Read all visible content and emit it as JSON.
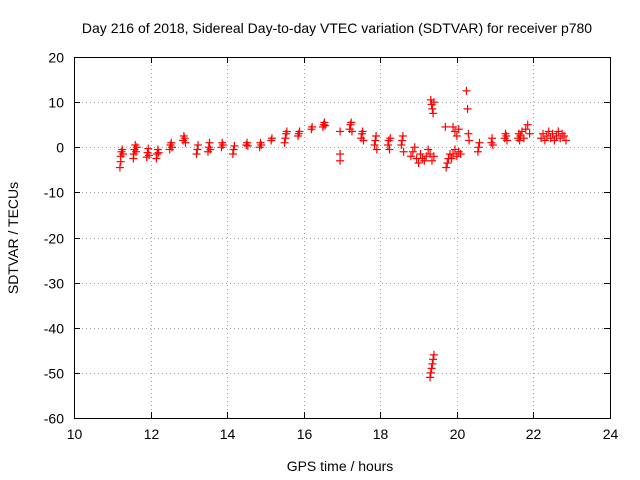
{
  "chart_data": {
    "type": "scatter",
    "title": "Day 216 of 2018, Sidereal Day-to-day VTEC variation (SDTVAR) for receiver p780",
    "xlabel": "GPS time / hours",
    "ylabel": "SDTVAR / TECUs",
    "xlim": [
      10,
      24
    ],
    "ylim": [
      -60,
      20
    ],
    "xticks": [
      10,
      12,
      14,
      16,
      18,
      20,
      22,
      24
    ],
    "yticks": [
      -60,
      -50,
      -40,
      -30,
      -20,
      -10,
      0,
      10,
      20
    ],
    "grid": true,
    "marker": "plus",
    "series_color": "#ff0000",
    "series": [
      {
        "name": "SDTVAR",
        "points": [
          [
            11.2,
            -4.5
          ],
          [
            11.22,
            -3.2
          ],
          [
            11.22,
            -2.0
          ],
          [
            11.24,
            -1.0
          ],
          [
            11.26,
            -0.5
          ],
          [
            11.28,
            -1.5
          ],
          [
            11.55,
            -2.5
          ],
          [
            11.56,
            -1.5
          ],
          [
            11.58,
            -0.5
          ],
          [
            11.6,
            0.5
          ],
          [
            11.62,
            -1.0
          ],
          [
            11.64,
            0.0
          ],
          [
            11.9,
            -2.2
          ],
          [
            11.92,
            -1.2
          ],
          [
            11.94,
            -0.3
          ],
          [
            11.96,
            -1.8
          ],
          [
            12.15,
            -2.5
          ],
          [
            12.17,
            -1.5
          ],
          [
            12.19,
            -0.5
          ],
          [
            12.21,
            -1.2
          ],
          [
            12.5,
            -0.5
          ],
          [
            12.52,
            0.5
          ],
          [
            12.54,
            1.0
          ],
          [
            12.56,
            0.0
          ],
          [
            12.85,
            1.5
          ],
          [
            12.87,
            2.5
          ],
          [
            12.89,
            2.0
          ],
          [
            12.91,
            1.0
          ],
          [
            13.2,
            -1.5
          ],
          [
            13.22,
            -0.5
          ],
          [
            13.24,
            0.5
          ],
          [
            13.5,
            -1.0
          ],
          [
            13.52,
            0.0
          ],
          [
            13.54,
            1.0
          ],
          [
            13.56,
            -0.5
          ],
          [
            13.85,
            0.0
          ],
          [
            13.87,
            1.0
          ],
          [
            13.89,
            0.5
          ],
          [
            14.15,
            -1.5
          ],
          [
            14.17,
            -0.5
          ],
          [
            14.19,
            0.3
          ],
          [
            14.5,
            0.5
          ],
          [
            14.52,
            1.0
          ],
          [
            14.54,
            0.3
          ],
          [
            14.85,
            0.0
          ],
          [
            14.87,
            1.0
          ],
          [
            14.89,
            0.5
          ],
          [
            15.15,
            1.5
          ],
          [
            15.17,
            2.0
          ],
          [
            15.5,
            1.0
          ],
          [
            15.52,
            2.0
          ],
          [
            15.54,
            3.0
          ],
          [
            15.56,
            3.5
          ],
          [
            15.85,
            2.5
          ],
          [
            15.87,
            3.0
          ],
          [
            15.89,
            3.5
          ],
          [
            16.2,
            4.0
          ],
          [
            16.22,
            4.5
          ],
          [
            16.5,
            4.5
          ],
          [
            16.52,
            5.0
          ],
          [
            16.54,
            5.5
          ],
          [
            16.56,
            4.8
          ],
          [
            16.95,
            -1.5
          ],
          [
            16.95,
            -3.0
          ],
          [
            16.95,
            3.5
          ],
          [
            17.2,
            4.0
          ],
          [
            17.22,
            5.0
          ],
          [
            17.24,
            5.5
          ],
          [
            17.26,
            3.5
          ],
          [
            17.5,
            2.0
          ],
          [
            17.52,
            3.0
          ],
          [
            17.54,
            3.5
          ],
          [
            17.56,
            1.5
          ],
          [
            17.85,
            0.5
          ],
          [
            17.87,
            1.5
          ],
          [
            17.89,
            2.5
          ],
          [
            17.91,
            -0.5
          ],
          [
            18.2,
            0.5
          ],
          [
            18.22,
            1.5
          ],
          [
            18.24,
            -0.5
          ],
          [
            18.26,
            2.0
          ],
          [
            18.55,
            0.5
          ],
          [
            18.57,
            1.5
          ],
          [
            18.59,
            2.5
          ],
          [
            18.61,
            -1.0
          ],
          [
            18.8,
            -2.0
          ],
          [
            18.85,
            -1.0
          ],
          [
            18.9,
            0.0
          ],
          [
            18.95,
            -2.5
          ],
          [
            19.0,
            -3.5
          ],
          [
            19.05,
            -1.5
          ],
          [
            19.1,
            -2.5
          ],
          [
            19.15,
            -3.0
          ],
          [
            19.2,
            -2.0
          ],
          [
            19.25,
            -0.5
          ],
          [
            19.3,
            -1.5
          ],
          [
            19.35,
            -3.0
          ],
          [
            19.4,
            -2.0
          ],
          [
            19.32,
            10.5
          ],
          [
            19.34,
            9.5
          ],
          [
            19.36,
            8.5
          ],
          [
            19.38,
            7.5
          ],
          [
            19.4,
            10.0
          ],
          [
            19.3,
            -51.0
          ],
          [
            19.32,
            -50.0
          ],
          [
            19.34,
            -49.0
          ],
          [
            19.36,
            -48.0
          ],
          [
            19.38,
            -47.0
          ],
          [
            19.4,
            -46.0
          ],
          [
            19.7,
            4.5
          ],
          [
            19.72,
            -4.5
          ],
          [
            19.75,
            -3.5
          ],
          [
            19.78,
            -2.5
          ],
          [
            19.82,
            -1.5
          ],
          [
            19.86,
            -2.5
          ],
          [
            19.9,
            -1.5
          ],
          [
            19.95,
            -0.5
          ],
          [
            20.0,
            -2.0
          ],
          [
            20.05,
            -1.0
          ],
          [
            20.1,
            -1.5
          ],
          [
            19.9,
            4.5
          ],
          [
            19.95,
            3.5
          ],
          [
            20.0,
            2.5
          ],
          [
            20.05,
            4.0
          ],
          [
            20.25,
            12.5
          ],
          [
            20.28,
            8.5
          ],
          [
            20.3,
            3.0
          ],
          [
            20.32,
            1.5
          ],
          [
            20.55,
            -1.0
          ],
          [
            20.57,
            0.0
          ],
          [
            20.59,
            1.0
          ],
          [
            20.9,
            1.0
          ],
          [
            20.92,
            2.0
          ],
          [
            20.94,
            0.5
          ],
          [
            21.25,
            2.0
          ],
          [
            21.27,
            3.0
          ],
          [
            21.29,
            2.5
          ],
          [
            21.31,
            1.5
          ],
          [
            21.6,
            2.0
          ],
          [
            21.62,
            3.0
          ],
          [
            21.64,
            1.5
          ],
          [
            21.66,
            2.5
          ],
          [
            21.7,
            3.5
          ],
          [
            21.75,
            2.0
          ],
          [
            21.8,
            4.0
          ],
          [
            21.85,
            5.0
          ],
          [
            21.9,
            3.0
          ],
          [
            22.2,
            2.0
          ],
          [
            22.25,
            3.0
          ],
          [
            22.3,
            1.5
          ],
          [
            22.35,
            2.5
          ],
          [
            22.4,
            3.5
          ],
          [
            22.45,
            2.0
          ],
          [
            22.5,
            3.0
          ],
          [
            22.55,
            1.5
          ],
          [
            22.6,
            2.5
          ],
          [
            22.65,
            3.5
          ],
          [
            22.7,
            2.0
          ],
          [
            22.75,
            3.0
          ],
          [
            22.8,
            2.5
          ],
          [
            22.85,
            1.5
          ]
        ]
      }
    ]
  }
}
